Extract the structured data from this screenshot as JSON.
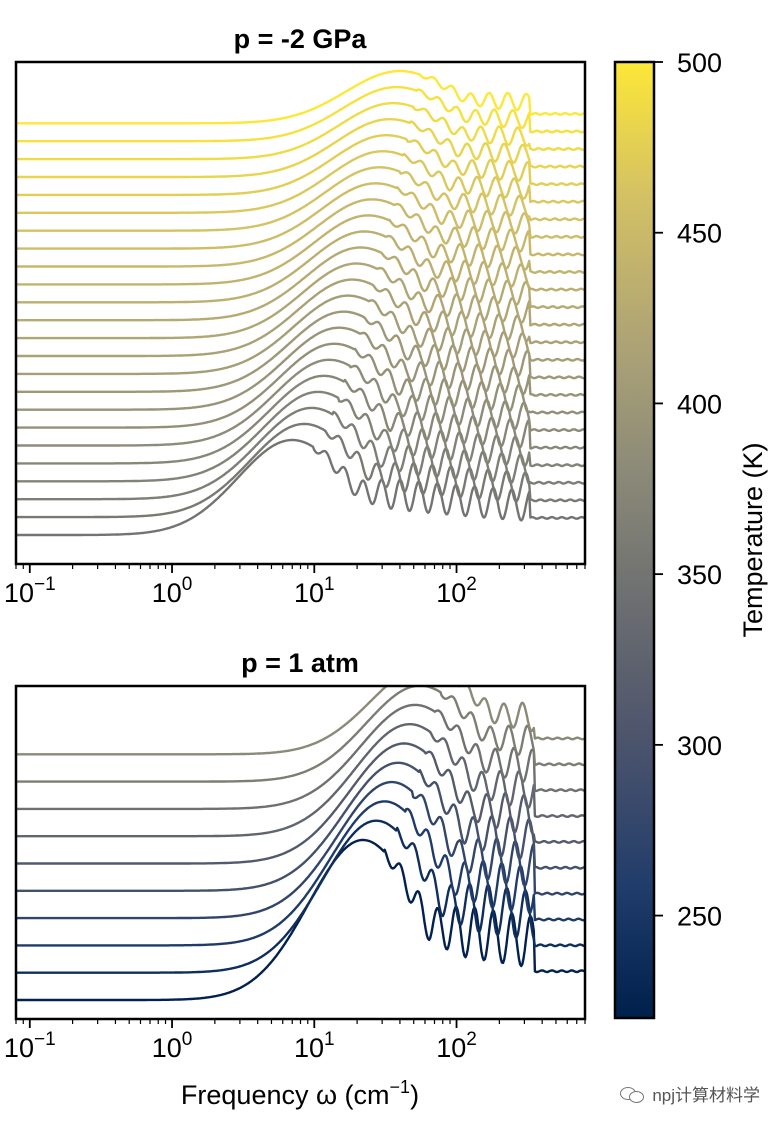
{
  "chart_data": [
    {
      "type": "line",
      "title": "p = -2 GPa",
      "xscale": "log",
      "xlim": [
        0.08,
        800
      ],
      "xticks": [
        {
          "base": "10",
          "exp": "−1"
        },
        {
          "base": "10",
          "exp": "0"
        },
        {
          "base": "10",
          "exp": "1"
        },
        {
          "base": "10",
          "exp": "2"
        }
      ],
      "xlabel": "",
      "ylabel": "",
      "series_count": 24,
      "temperature_range_K": [
        350,
        500
      ],
      "note": "Vertically offset spectra, one curve per temperature; low-T curves show a broad peak near 5–10 cm⁻¹ with oscillations up to ~300 cm⁻¹ and a sharp edge near 330 cm⁻¹"
    },
    {
      "type": "line",
      "title": "p = 1 atm",
      "xscale": "log",
      "xlim": [
        0.08,
        800
      ],
      "xticks": [
        {
          "base": "10",
          "exp": "−1"
        },
        {
          "base": "10",
          "exp": "0"
        },
        {
          "base": "10",
          "exp": "1"
        },
        {
          "base": "10",
          "exp": "2"
        }
      ],
      "xlabel": "Frequency ω (cm",
      "xlabel_sup": "−1",
      "xlabel_end": ")",
      "ylabel": "",
      "series_count": 10,
      "temperature_range_K": [
        222,
        380
      ],
      "note": "Vertically offset spectra; low-T curves peak near 20–40 cm⁻¹ with a sharp edge near 350 cm⁻¹"
    }
  ],
  "colorbar": {
    "label": "Temperature (K)",
    "range": [
      220,
      500
    ],
    "ticks": [
      "250",
      "300",
      "350",
      "400",
      "450",
      "500"
    ],
    "tick_values": [
      250,
      300,
      350,
      400,
      450,
      500
    ],
    "colormap": "cividis",
    "colors": [
      "#00204c",
      "#213d6b",
      "#4c546c",
      "#6b6d70",
      "#8b8a78",
      "#aea475",
      "#d3c164",
      "#fde737"
    ]
  },
  "watermark": "npj计算材料学"
}
